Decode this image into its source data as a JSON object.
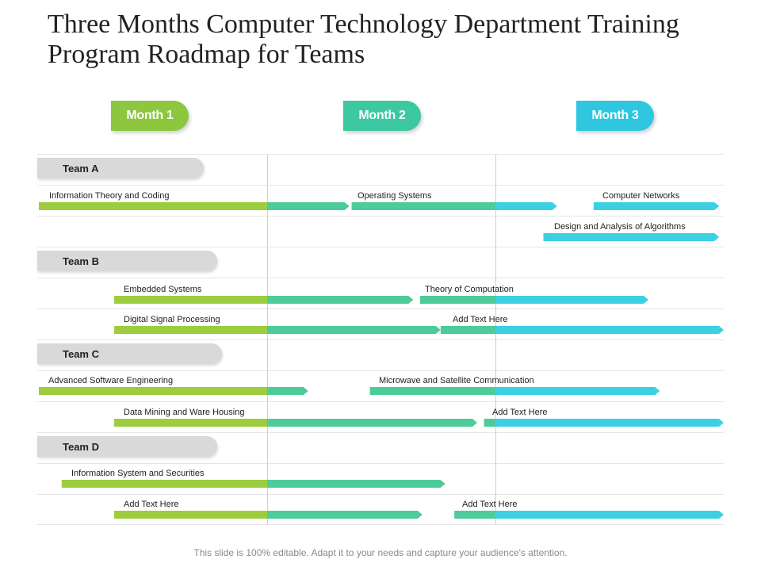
{
  "title": "Three Months Computer Technology Department Training Program Roadmap for Teams",
  "months": [
    {
      "label": "Month 1",
      "color": "#8dc63f"
    },
    {
      "label": "Month 2",
      "color": "#3cc8a0"
    },
    {
      "label": "Month 3",
      "color": "#2fc6e0"
    }
  ],
  "colors": {
    "month1": "#9dcc3e",
    "month2": "#4ecb9a",
    "month3": "#3cd0e3",
    "team_pill": "#d9d9d9"
  },
  "teams": [
    {
      "label": "Team  A"
    },
    {
      "label": "Team  B"
    },
    {
      "label": "Team  C"
    },
    {
      "label": "Team  D"
    }
  ],
  "tasks": [
    {
      "label": "Information Theory and Coding",
      "start_month": 0.0,
      "end_month": 1.36
    },
    {
      "label": "Operating Systems",
      "start_month": 1.37,
      "end_month": 2.27
    },
    {
      "label": "Computer Networks",
      "start_month": 2.43,
      "end_month": 2.98
    },
    {
      "label": "Design and Analysis of Algorithms",
      "start_month": 2.21,
      "end_month": 2.98
    },
    {
      "label": "Embedded Systems",
      "start_month": 0.33,
      "end_month": 1.64
    },
    {
      "label": "Theory of Computation",
      "start_month": 1.67,
      "end_month": 2.67
    },
    {
      "label": "Digital Signal Processing",
      "start_month": 0.33,
      "end_month": 1.76
    },
    {
      "label": "Add Text Here",
      "start_month": 1.76,
      "end_month": 3.0
    },
    {
      "label": "Advanced Software Engineering",
      "start_month": 0.0,
      "end_month": 1.18
    },
    {
      "label": "Microwave and Satellite Communication",
      "start_month": 1.45,
      "end_month": 2.72
    },
    {
      "label": "Data Mining and Ware Housing",
      "start_month": 0.33,
      "end_month": 1.92
    },
    {
      "label": "Add Text Here",
      "start_month": 1.95,
      "end_month": 3.0
    },
    {
      "label": "Information System and Securities",
      "start_month": 0.1,
      "end_month": 1.78
    },
    {
      "label": "Add Text Here",
      "start_month": 0.33,
      "end_month": 1.68
    },
    {
      "label": "Add Text Here",
      "start_month": 1.82,
      "end_month": 3.0
    }
  ],
  "footer": "This slide is 100% editable. Adapt it to your needs and capture your audience's attention."
}
